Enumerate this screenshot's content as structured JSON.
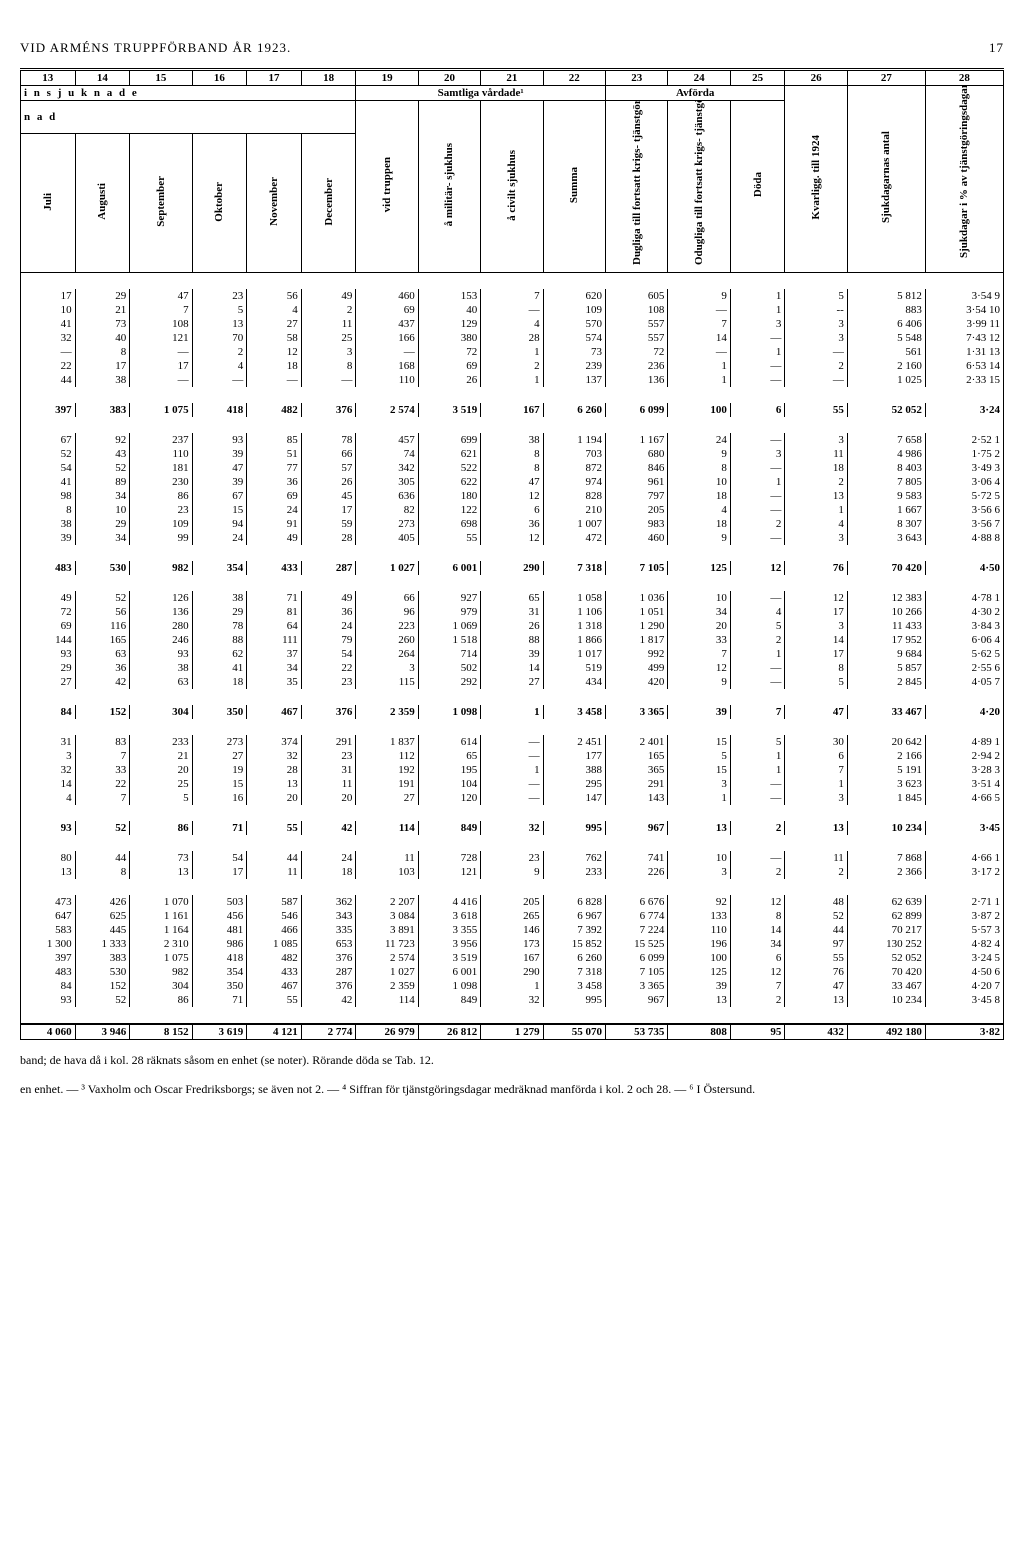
{
  "header": {
    "title": "VID ARMÉNS TRUPPFÖRBAND ÅR 1923.",
    "pagenum": "17"
  },
  "colnums": [
    "13",
    "14",
    "15",
    "16",
    "17",
    "18",
    "19",
    "20",
    "21",
    "22",
    "23",
    "24",
    "25",
    "26",
    "27",
    "28"
  ],
  "group1": {
    "left": "i n s j u k n a d e",
    "g19": "Samtliga vårdade¹",
    "g23": "Avförda"
  },
  "nad": "n a d",
  "colheads": {
    "c13": "Juli",
    "c14": "Augusti",
    "c15": "September",
    "c16": "Oktober",
    "c17": "November",
    "c18": "December",
    "c19": "vid truppen",
    "c20": "å militär-\nsjukhus",
    "c21": "å civilt sjukhus",
    "c22": "Summa",
    "c23": "Dugliga till\nfortsatt krigs-\ntjänstgöring",
    "c24": "Odugliga till\nfortsatt krigs-\ntjänstgöring",
    "c25": "Döda",
    "c26": "Kvarligg. till 1924",
    "c27": "Sjukdagarnas antal",
    "c28": "Sjukdagar i % av\ntjänstgöringsdagar"
  },
  "rows": [
    [
      "17",
      "29",
      "47",
      "23",
      "56",
      "49",
      "460",
      "153",
      "7",
      "620",
      "605",
      "9",
      "1",
      "5",
      "5 812",
      "3·54  9"
    ],
    [
      "10",
      "21",
      "7",
      "5",
      "4",
      "2",
      "69",
      "40",
      "—",
      "109",
      "108",
      "—",
      "1",
      "--",
      "883",
      "3·54 10"
    ],
    [
      "41",
      "73",
      "108",
      "13",
      "27",
      "11",
      "437",
      "129",
      "4",
      "570",
      "557",
      "7",
      "3",
      "3",
      "6 406",
      "3·99 11"
    ],
    [
      "32",
      "40",
      "121",
      "70",
      "58",
      "25",
      "166",
      "380",
      "28",
      "574",
      "557",
      "14",
      "—",
      "3",
      "5 548",
      "7·43 12"
    ],
    [
      "—",
      "8",
      "—",
      "2",
      "12",
      "3",
      "—",
      "72",
      "1",
      "73",
      "72",
      "—",
      "1",
      "—",
      "561",
      "1·31 13"
    ],
    [
      "22",
      "17",
      "17",
      "4",
      "18",
      "8",
      "168",
      "69",
      "2",
      "239",
      "236",
      "1",
      "—",
      "2",
      "2 160",
      "6·53 14"
    ],
    [
      "44",
      "38",
      "—",
      "—",
      "—",
      "—",
      "110",
      "26",
      "1",
      "137",
      "136",
      "1",
      "—",
      "—",
      "1 025",
      "2·33 15"
    ]
  ],
  "sum1": [
    "397",
    "383",
    "1 075",
    "418",
    "482",
    "376",
    "2 574",
    "3 519",
    "167",
    "6 260",
    "6 099",
    "100",
    "6",
    "55",
    "52 052",
    "3·24"
  ],
  "rows2": [
    [
      "67",
      "92",
      "237",
      "93",
      "85",
      "78",
      "457",
      "699",
      "38",
      "1 194",
      "1 167",
      "24",
      "—",
      "3",
      "7 658",
      "2·52  1"
    ],
    [
      "52",
      "43",
      "110",
      "39",
      "51",
      "66",
      "74",
      "621",
      "8",
      "703",
      "680",
      "9",
      "3",
      "11",
      "4 986",
      "1·75  2"
    ],
    [
      "54",
      "52",
      "181",
      "47",
      "77",
      "57",
      "342",
      "522",
      "8",
      "872",
      "846",
      "8",
      "—",
      "18",
      "8 403",
      "3·49  3"
    ],
    [
      "41",
      "89",
      "230",
      "39",
      "36",
      "26",
      "305",
      "622",
      "47",
      "974",
      "961",
      "10",
      "1",
      "2",
      "7 805",
      "3·06  4"
    ],
    [
      "98",
      "34",
      "86",
      "67",
      "69",
      "45",
      "636",
      "180",
      "12",
      "828",
      "797",
      "18",
      "—",
      "13",
      "9 583",
      "5·72  5"
    ],
    [
      "8",
      "10",
      "23",
      "15",
      "24",
      "17",
      "82",
      "122",
      "6",
      "210",
      "205",
      "4",
      "—",
      "1",
      "1 667",
      "3·56  6"
    ],
    [
      "38",
      "29",
      "109",
      "94",
      "91",
      "59",
      "273",
      "698",
      "36",
      "1 007",
      "983",
      "18",
      "2",
      "4",
      "8 307",
      "3·56  7"
    ],
    [
      "39",
      "34",
      "99",
      "24",
      "49",
      "28",
      "405",
      "55",
      "12",
      "472",
      "460",
      "9",
      "—",
      "3",
      "3 643",
      "4·88  8"
    ]
  ],
  "sum2": [
    "483",
    "530",
    "982",
    "354",
    "433",
    "287",
    "1 027",
    "6 001",
    "290",
    "7 318",
    "7 105",
    "125",
    "12",
    "76",
    "70 420",
    "4·50"
  ],
  "rows3": [
    [
      "49",
      "52",
      "126",
      "38",
      "71",
      "49",
      "66",
      "927",
      "65",
      "1 058",
      "1 036",
      "10",
      "—",
      "12",
      "12 383",
      "4·78  1"
    ],
    [
      "72",
      "56",
      "136",
      "29",
      "81",
      "36",
      "96",
      "979",
      "31",
      "1 106",
      "1 051",
      "34",
      "4",
      "17",
      "10 266",
      "4·30  2"
    ],
    [
      "69",
      "116",
      "280",
      "78",
      "64",
      "24",
      "223",
      "1 069",
      "26",
      "1 318",
      "1 290",
      "20",
      "5",
      "3",
      "11 433",
      "3·84  3"
    ],
    [
      "144",
      "165",
      "246",
      "88",
      "111",
      "79",
      "260",
      "1 518",
      "88",
      "1 866",
      "1 817",
      "33",
      "2",
      "14",
      "17 952",
      "6·06  4"
    ],
    [
      "93",
      "63",
      "93",
      "62",
      "37",
      "54",
      "264",
      "714",
      "39",
      "1 017",
      "992",
      "7",
      "1",
      "17",
      "9 684",
      "5·62  5"
    ],
    [
      "29",
      "36",
      "38",
      "41",
      "34",
      "22",
      "3",
      "502",
      "14",
      "519",
      "499",
      "12",
      "—",
      "8",
      "5 857",
      "2·55  6"
    ],
    [
      "27",
      "42",
      "63",
      "18",
      "35",
      "23",
      "115",
      "292",
      "27",
      "434",
      "420",
      "9",
      "—",
      "5",
      "2 845",
      "4·05  7"
    ]
  ],
  "sum3": [
    "84",
    "152",
    "304",
    "350",
    "467",
    "376",
    "2 359",
    "1 098",
    "1",
    "3 458",
    "3 365",
    "39",
    "7",
    "47",
    "33 467",
    "4·20"
  ],
  "rows4": [
    [
      "31",
      "83",
      "233",
      "273",
      "374",
      "291",
      "1 837",
      "614",
      "—",
      "2 451",
      "2 401",
      "15",
      "5",
      "30",
      "20 642",
      "4·89  1"
    ],
    [
      "3",
      "7",
      "21",
      "27",
      "32",
      "23",
      "112",
      "65",
      "—",
      "177",
      "165",
      "5",
      "1",
      "6",
      "2 166",
      "2·94  2"
    ],
    [
      "32",
      "33",
      "20",
      "19",
      "28",
      "31",
      "192",
      "195",
      "1",
      "388",
      "365",
      "15",
      "1",
      "7",
      "5 191",
      "3·28  3"
    ],
    [
      "14",
      "22",
      "25",
      "15",
      "13",
      "11",
      "191",
      "104",
      "—",
      "295",
      "291",
      "3",
      "—",
      "1",
      "3 623",
      "3·51  4"
    ],
    [
      "4",
      "7",
      "5",
      "16",
      "20",
      "20",
      "27",
      "120",
      "—",
      "147",
      "143",
      "1",
      "—",
      "3",
      "1 845",
      "4·66  5"
    ]
  ],
  "sum4": [
    "93",
    "52",
    "86",
    "71",
    "55",
    "42",
    "114",
    "849",
    "32",
    "995",
    "967",
    "13",
    "2",
    "13",
    "10 234",
    "3·45"
  ],
  "rows5": [
    [
      "80",
      "44",
      "73",
      "54",
      "44",
      "24",
      "11",
      "728",
      "23",
      "762",
      "741",
      "10",
      "—",
      "11",
      "7 868",
      "4·66  1"
    ],
    [
      "13",
      "8",
      "13",
      "17",
      "11",
      "18",
      "103",
      "121",
      "9",
      "233",
      "226",
      "3",
      "2",
      "2",
      "2 366",
      "3·17  2"
    ]
  ],
  "rows6": [
    [
      "473",
      "426",
      "1 070",
      "503",
      "587",
      "362",
      "2 207",
      "4 416",
      "205",
      "6 828",
      "6 676",
      "92",
      "12",
      "48",
      "62 639",
      "2·71  1"
    ],
    [
      "647",
      "625",
      "1 161",
      "456",
      "546",
      "343",
      "3 084",
      "3 618",
      "265",
      "6 967",
      "6 774",
      "133",
      "8",
      "52",
      "62 899",
      "3·87  2"
    ],
    [
      "583",
      "445",
      "1 164",
      "481",
      "466",
      "335",
      "3 891",
      "3 355",
      "146",
      "7 392",
      "7 224",
      "110",
      "14",
      "44",
      "70 217",
      "5·57  3"
    ],
    [
      "1 300",
      "1 333",
      "2 310",
      "986",
      "1 085",
      "653",
      "11 723",
      "3 956",
      "173",
      "15 852",
      "15 525",
      "196",
      "34",
      "97",
      "130 252",
      "4·82  4"
    ],
    [
      "397",
      "383",
      "1 075",
      "418",
      "482",
      "376",
      "2 574",
      "3 519",
      "167",
      "6 260",
      "6 099",
      "100",
      "6",
      "55",
      "52 052",
      "3·24  5"
    ],
    [
      "483",
      "530",
      "982",
      "354",
      "433",
      "287",
      "1 027",
      "6 001",
      "290",
      "7 318",
      "7 105",
      "125",
      "12",
      "76",
      "70 420",
      "4·50  6"
    ],
    [
      "84",
      "152",
      "304",
      "350",
      "467",
      "376",
      "2 359",
      "1 098",
      "1",
      "3 458",
      "3 365",
      "39",
      "7",
      "47",
      "33 467",
      "4·20  7"
    ],
    [
      "93",
      "52",
      "86",
      "71",
      "55",
      "42",
      "114",
      "849",
      "32",
      "995",
      "967",
      "13",
      "2",
      "13",
      "10 234",
      "3·45  8"
    ]
  ],
  "grand": [
    "4 060",
    "3 946",
    "8 152",
    "3 619",
    "4 121",
    "2 774",
    "26 979",
    "26 812",
    "1 279",
    "55 070",
    "53 735",
    "808",
    "95",
    "432",
    "492 180",
    "3·82"
  ],
  "footer": {
    "line1": "band; de hava då i kol. 28 räknats såsom en enhet (se noter).  Rörande döda se Tab. 12.",
    "line2": "en enhet. — ³ Vaxholm och Oscar Fredriksborgs; se även not 2. — ⁴ Siffran för tjänstgöringsdagar medräknad manförda i kol. 2 och 28. — ⁶ I Östersund."
  }
}
